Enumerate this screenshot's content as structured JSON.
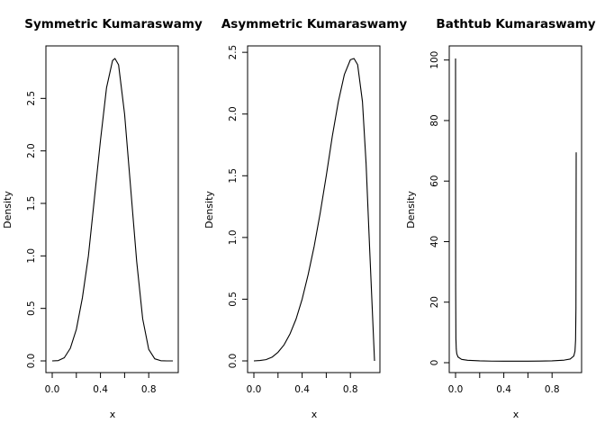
{
  "chart_data": [
    {
      "type": "line",
      "title": "Symmetric Kumaraswamy",
      "xlabel": "x",
      "ylabel": "Density",
      "xlim": [
        0,
        1
      ],
      "ylim": [
        0,
        2.88
      ],
      "x_ticks": [
        "0.0",
        "0.4",
        "0.8"
      ],
      "y_ticks": [
        "0.0",
        "0.5",
        "1.0",
        "1.5",
        "2.0",
        "2.5"
      ],
      "series": [
        {
          "x": [
            0.0,
            0.05,
            0.1,
            0.15,
            0.2,
            0.25,
            0.3,
            0.35,
            0.4,
            0.45,
            0.5,
            0.52,
            0.55,
            0.6,
            0.65,
            0.7,
            0.75,
            0.8,
            0.85,
            0.9,
            0.95,
            1.0
          ],
          "y": [
            0.0,
            0.003,
            0.03,
            0.12,
            0.3,
            0.6,
            1.0,
            1.55,
            2.1,
            2.6,
            2.86,
            2.88,
            2.82,
            2.35,
            1.65,
            0.95,
            0.4,
            0.11,
            0.02,
            0.002,
            0.0,
            0.0
          ]
        }
      ]
    },
    {
      "type": "line",
      "title": "Asymmetric Kumaraswamy",
      "xlabel": "x",
      "ylabel": "Density",
      "xlim": [
        0,
        1
      ],
      "ylim": [
        0,
        2.45
      ],
      "x_ticks": [
        "0.0",
        "0.4",
        "0.8"
      ],
      "y_ticks": [
        "0.0",
        "0.5",
        "1.0",
        "1.5",
        "2.0",
        "2.5"
      ],
      "series": [
        {
          "x": [
            0.0,
            0.05,
            0.1,
            0.15,
            0.2,
            0.25,
            0.3,
            0.35,
            0.4,
            0.45,
            0.5,
            0.55,
            0.6,
            0.65,
            0.7,
            0.75,
            0.8,
            0.83,
            0.86,
            0.9,
            0.93,
            0.96,
            0.98,
            1.0
          ],
          "y": [
            0.0,
            0.003,
            0.01,
            0.03,
            0.07,
            0.13,
            0.22,
            0.34,
            0.5,
            0.7,
            0.93,
            1.2,
            1.5,
            1.82,
            2.1,
            2.32,
            2.44,
            2.45,
            2.4,
            2.1,
            1.6,
            0.9,
            0.45,
            0.0
          ]
        }
      ]
    },
    {
      "type": "line",
      "title": "Bathtub Kumaraswamy",
      "xlabel": "x",
      "ylabel": "Density",
      "xlim": [
        0,
        1
      ],
      "ylim": [
        0,
        100.5
      ],
      "x_ticks": [
        "0.0",
        "0.4",
        "0.8"
      ],
      "y_ticks": [
        "0",
        "20",
        "40",
        "60",
        "80",
        "100"
      ],
      "series": [
        {
          "x": [
            0.0,
            0.001,
            0.003,
            0.006,
            0.01,
            0.02,
            0.05,
            0.1,
            0.2,
            0.3,
            0.4,
            0.5,
            0.6,
            0.7,
            0.8,
            0.9,
            0.95,
            0.98,
            0.99,
            0.995,
            0.998,
            1.0
          ],
          "y": [
            100.5,
            25.0,
            8.0,
            4.5,
            3.0,
            1.9,
            1.1,
            0.8,
            0.6,
            0.52,
            0.5,
            0.49,
            0.5,
            0.55,
            0.62,
            0.85,
            1.2,
            2.2,
            3.8,
            7.5,
            18.0,
            69.5
          ]
        }
      ]
    }
  ]
}
